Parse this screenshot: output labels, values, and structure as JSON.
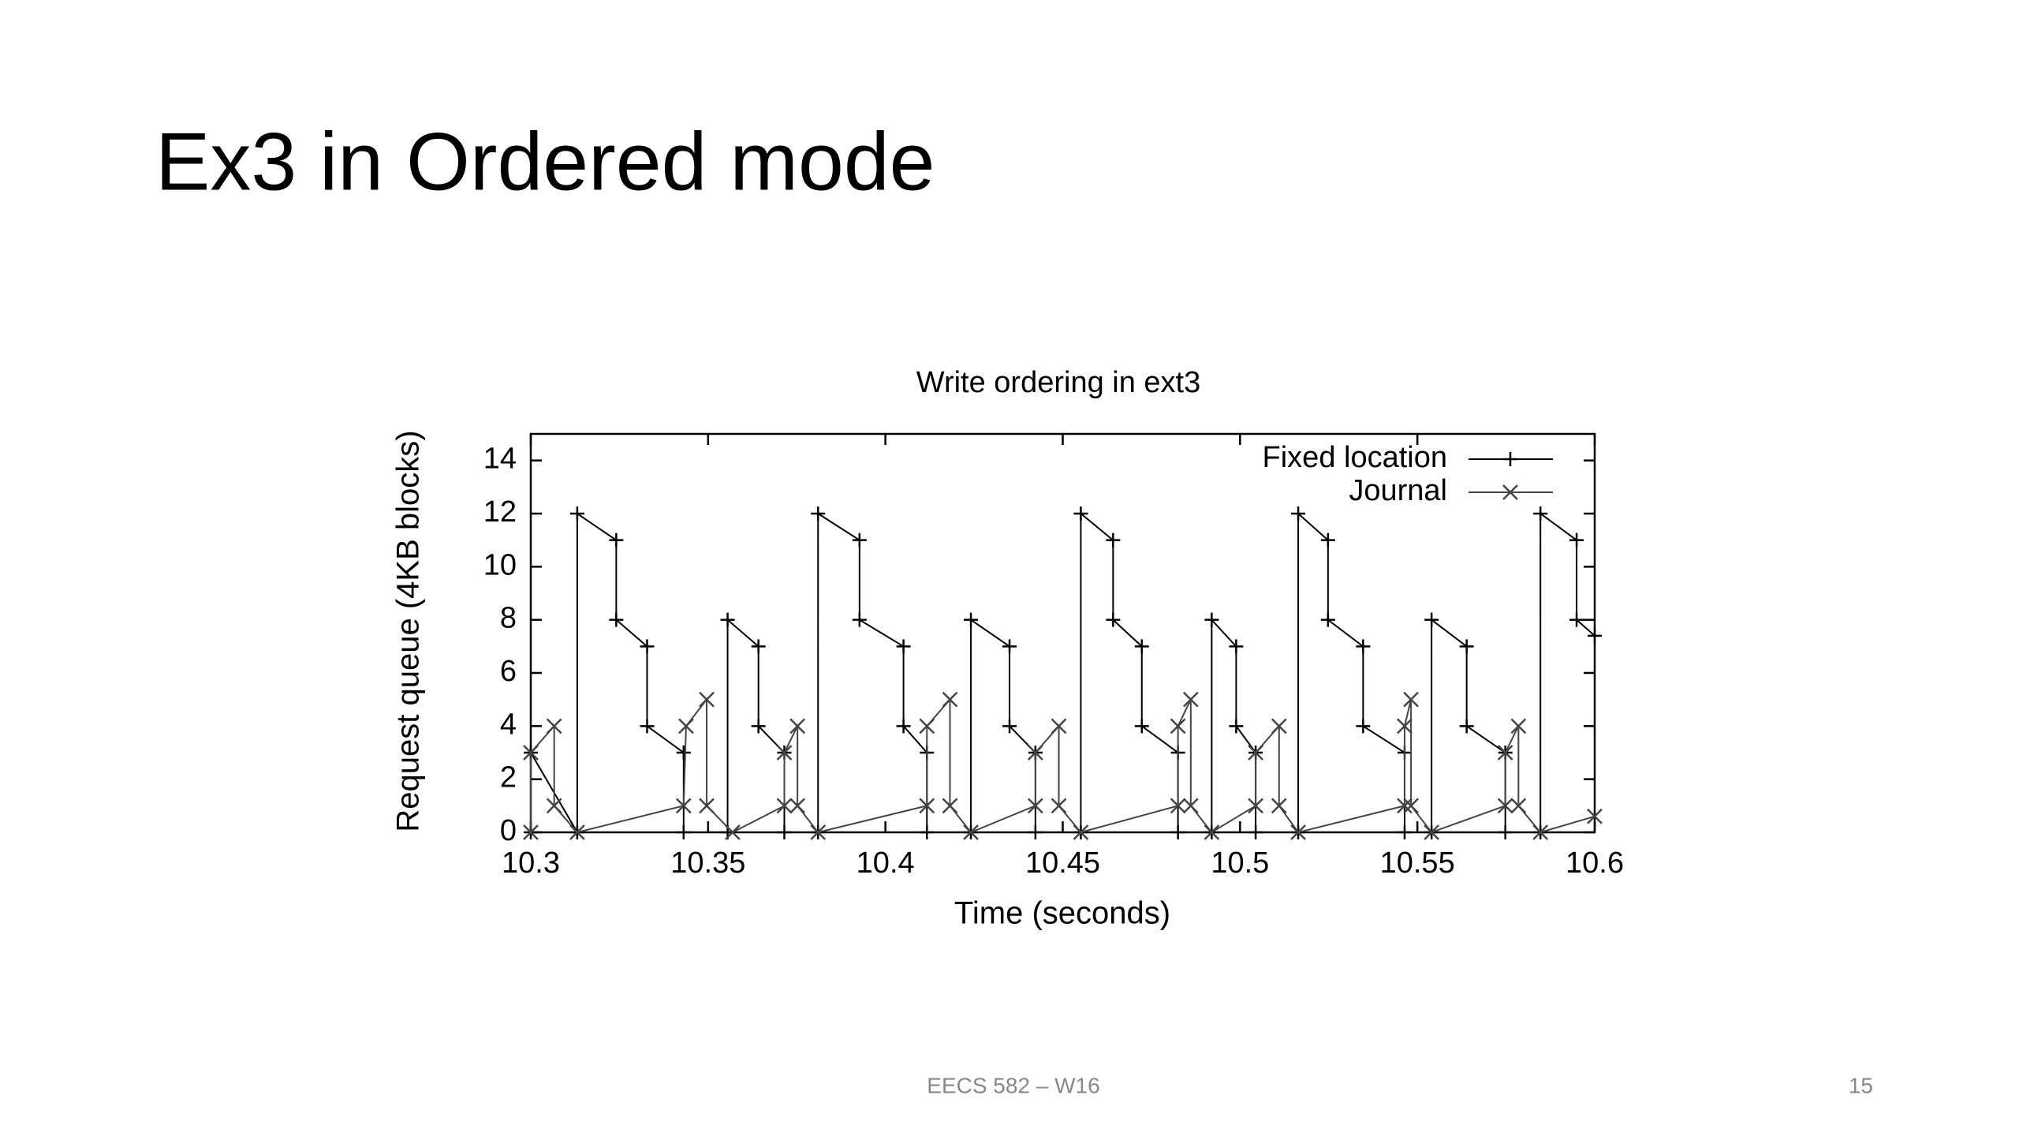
{
  "slide": {
    "title": "Ex3 in Ordered mode",
    "footer": "EECS 582 – W16",
    "page_number": "15"
  },
  "chart_data": {
    "type": "line",
    "title": "Write ordering in ext3",
    "x_label": "Time (seconds)",
    "y_label": "Request queue (4KB blocks)",
    "xlim": [
      10.3,
      10.6
    ],
    "ylim": [
      0,
      15
    ],
    "xticks": [
      10.3,
      10.35,
      10.4,
      10.45,
      10.5,
      10.55,
      10.6
    ],
    "yticks": [
      0,
      2,
      4,
      6,
      8,
      10,
      12,
      14
    ],
    "legend": "top-right",
    "series": [
      {
        "name": "Fixed location",
        "color": "#000000",
        "marker": "plus",
        "x": [
          10.3,
          10.3,
          10.3131,
          10.3131,
          10.3241,
          10.3241,
          10.3328,
          10.3328,
          10.3431,
          10.3431,
          10.3555,
          10.3555,
          10.3642,
          10.3642,
          10.3715,
          10.3715,
          10.381,
          10.381,
          10.3927,
          10.3927,
          10.4051,
          10.4051,
          10.4117,
          10.4117,
          10.4241,
          10.4241,
          10.435,
          10.435,
          10.4423,
          10.4423,
          10.4551,
          10.4551,
          10.4642,
          10.4642,
          10.4723,
          10.4723,
          10.4825,
          10.4825,
          10.492,
          10.492,
          10.4989,
          10.4989,
          10.5044,
          10.5044,
          10.5164,
          10.5164,
          10.5248,
          10.5248,
          10.5347,
          10.5347,
          10.5464,
          10.5464,
          10.554,
          10.554,
          10.5639,
          10.5639,
          10.5748,
          10.5748,
          10.5847,
          10.5847,
          10.5949,
          10.5949,
          10.6
        ],
        "values": [
          0,
          3,
          0,
          12,
          11,
          8,
          7,
          4,
          3,
          0,
          0,
          8,
          7,
          4,
          3,
          0,
          0,
          12,
          11,
          8,
          7,
          4,
          3,
          0,
          0,
          8,
          7,
          4,
          3,
          0,
          0,
          12,
          11,
          8,
          7,
          4,
          3,
          0,
          0,
          8,
          7,
          4,
          3,
          0,
          0,
          12,
          11,
          8,
          7,
          4,
          3,
          0,
          0,
          8,
          7,
          4,
          3,
          0,
          0,
          12,
          11,
          8,
          7.4
        ]
      },
      {
        "name": "Journal",
        "color": "#444444",
        "marker": "cross",
        "x": [
          10.3,
          10.3,
          10.3066,
          10.3066,
          10.3131,
          10.3431,
          10.3438,
          10.3496,
          10.3496,
          10.3569,
          10.3715,
          10.3715,
          10.3752,
          10.3752,
          10.381,
          10.4117,
          10.4117,
          10.4182,
          10.4182,
          10.4241,
          10.4423,
          10.4423,
          10.4489,
          10.4489,
          10.4551,
          10.4825,
          10.4825,
          10.4861,
          10.4861,
          10.492,
          10.5044,
          10.5044,
          10.511,
          10.511,
          10.5164,
          10.5464,
          10.5464,
          10.5482,
          10.5482,
          10.554,
          10.5748,
          10.5748,
          10.5785,
          10.5785,
          10.5847,
          10.6
        ],
        "values": [
          0,
          3,
          4,
          1,
          0,
          1,
          4,
          5,
          1,
          0,
          1,
          3,
          4,
          1,
          0,
          1,
          4,
          5,
          1,
          0,
          1,
          3,
          4,
          1,
          0,
          1,
          4,
          5,
          1,
          0,
          1,
          3,
          4,
          1,
          0,
          1,
          4,
          5,
          1,
          0,
          1,
          3,
          4,
          1,
          0,
          0.6
        ]
      }
    ]
  }
}
